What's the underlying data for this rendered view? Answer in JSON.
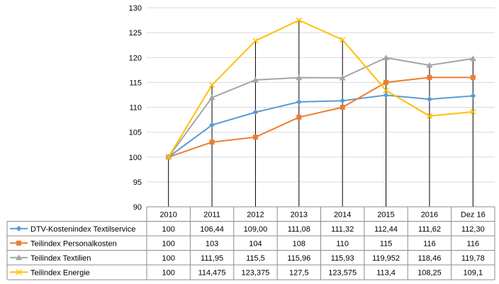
{
  "chart_data": {
    "type": "line",
    "title": "",
    "xlabel": "",
    "ylabel": "",
    "ylim": [
      90,
      130
    ],
    "yticks": [
      "90",
      "95",
      "100",
      "105",
      "110",
      "115",
      "120",
      "125",
      "130"
    ],
    "categories": [
      "2010",
      "2011",
      "2012",
      "2013",
      "2014",
      "2015",
      "2016",
      "Dez 16"
    ],
    "grid": "horizontal",
    "legend": "data-table-below",
    "series": [
      {
        "name": "DTV-Kostenindex Textilservice",
        "color": "#5B9BD5",
        "marker": "diamond",
        "values": [
          100,
          106.44,
          109.0,
          111.08,
          111.32,
          112.44,
          111.62,
          112.3
        ],
        "labels": [
          "100",
          "106,44",
          "109,00",
          "111,08",
          "111,32",
          "112,44",
          "111,62",
          "112,30"
        ]
      },
      {
        "name": "Teilindex Personalkosten",
        "color": "#ED7D31",
        "marker": "square",
        "values": [
          100,
          103,
          104,
          108,
          110,
          115,
          116,
          116
        ],
        "labels": [
          "100",
          "103",
          "104",
          "108",
          "110",
          "115",
          "116",
          "116"
        ]
      },
      {
        "name": "Teilindex Textilien",
        "color": "#A5A5A5",
        "marker": "triangle",
        "values": [
          100,
          111.95,
          115.5,
          115.96,
          115.93,
          119.952,
          118.46,
          119.78
        ],
        "labels": [
          "100",
          "111,95",
          "115,5",
          "115,96",
          "115,93",
          "119,952",
          "118,46",
          "119,78"
        ]
      },
      {
        "name": "Teilindex Energie",
        "color": "#FFC000",
        "marker": "x",
        "values": [
          100,
          114.475,
          123.375,
          127.5,
          123.575,
          113.4,
          108.25,
          109.1
        ],
        "labels": [
          "100",
          "114,475",
          "123,375",
          "127,5",
          "123,575",
          "113,4",
          "108,25",
          "109,1"
        ]
      }
    ]
  }
}
